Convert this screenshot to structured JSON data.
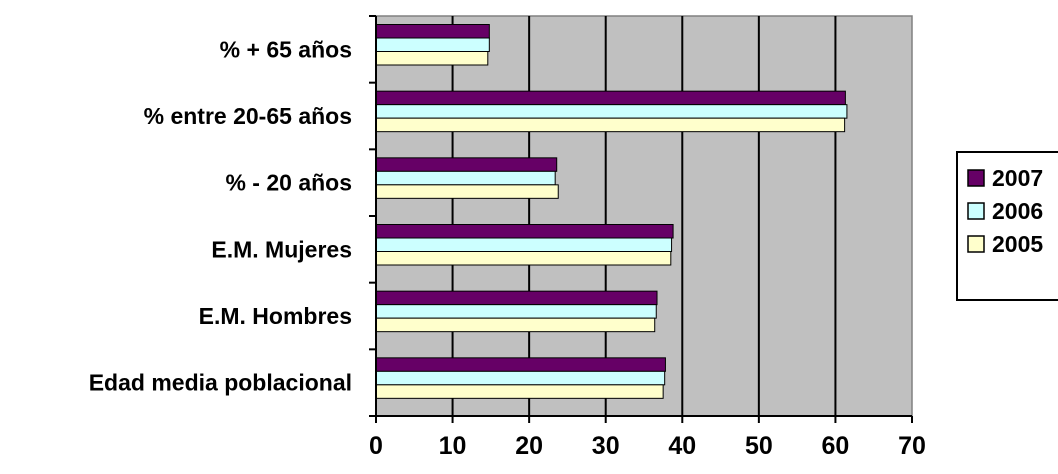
{
  "chart_data": {
    "type": "bar",
    "orientation": "horizontal",
    "categories": [
      "% + 65 años",
      "% entre 20-65 años",
      "% - 20 años",
      "E.M. Mujeres",
      "E.M. Hombres",
      "Edad media poblacional"
    ],
    "series": [
      {
        "name": "2007",
        "color": "#660066",
        "values": [
          14.8,
          61.3,
          23.6,
          38.8,
          36.7,
          37.8
        ]
      },
      {
        "name": "2006",
        "color": "#ccffff",
        "values": [
          14.8,
          61.5,
          23.4,
          38.6,
          36.6,
          37.7
        ]
      },
      {
        "name": "2005",
        "color": "#ffffcc",
        "values": [
          14.6,
          61.2,
          23.8,
          38.5,
          36.4,
          37.5
        ]
      }
    ],
    "x_ticks": [
      "0",
      "10",
      "20",
      "30",
      "40",
      "50",
      "60",
      "70"
    ],
    "xlim": [
      0,
      70
    ],
    "grid": true,
    "plot_background": "#c0c0c0",
    "legend": {
      "position": "right",
      "entries": [
        "2007",
        "2006",
        "2005"
      ]
    },
    "title": "",
    "xlabel": "",
    "ylabel": ""
  }
}
